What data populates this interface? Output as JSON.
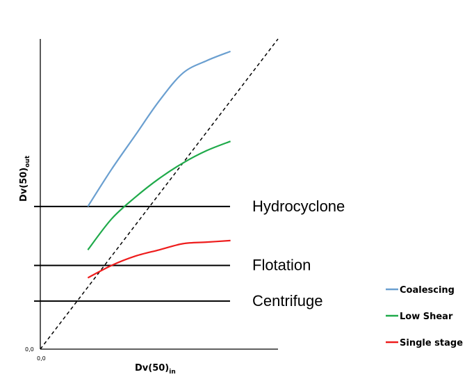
{
  "chart_data": {
    "type": "line",
    "xlabel": "Dv(50)in",
    "ylabel": "Dv(50)out",
    "xlabel_main": "Dv(50)",
    "xlabel_sub": "in",
    "ylabel_main": "Dv(50)",
    "ylabel_sub": "out",
    "x_origin_label": "0,0",
    "y_origin_label": "0,0",
    "xlim": [
      0,
      1
    ],
    "ylim": [
      0,
      1.0
    ],
    "grid": false,
    "legend_position": "bottom-right",
    "series": [
      {
        "name": "Coalescing",
        "color": "#6a9fd0",
        "x": [
          0.2,
          0.3,
          0.4,
          0.5,
          0.6,
          0.7,
          0.8
        ],
        "y": [
          0.46,
          0.58,
          0.69,
          0.8,
          0.89,
          0.93,
          0.96
        ]
      },
      {
        "name": "Low Shear",
        "color": "#1faa4a",
        "x": [
          0.2,
          0.3,
          0.4,
          0.5,
          0.6,
          0.7,
          0.8
        ],
        "y": [
          0.32,
          0.42,
          0.49,
          0.55,
          0.6,
          0.64,
          0.67
        ]
      },
      {
        "name": "Single stage",
        "color": "#ee1c1c",
        "x": [
          0.2,
          0.3,
          0.4,
          0.5,
          0.6,
          0.7,
          0.8
        ],
        "y": [
          0.23,
          0.27,
          0.3,
          0.32,
          0.34,
          0.345,
          0.35
        ]
      }
    ],
    "reference_line": {
      "style": "dashed",
      "color": "#000000",
      "x": [
        0,
        1.0
      ],
      "y": [
        0,
        1.0
      ]
    },
    "thresholds": [
      {
        "label": "Hydrocyclone",
        "y": 0.46
      },
      {
        "label": "Flotation",
        "y": 0.27
      },
      {
        "label": "Centrifuge",
        "y": 0.155
      }
    ]
  }
}
